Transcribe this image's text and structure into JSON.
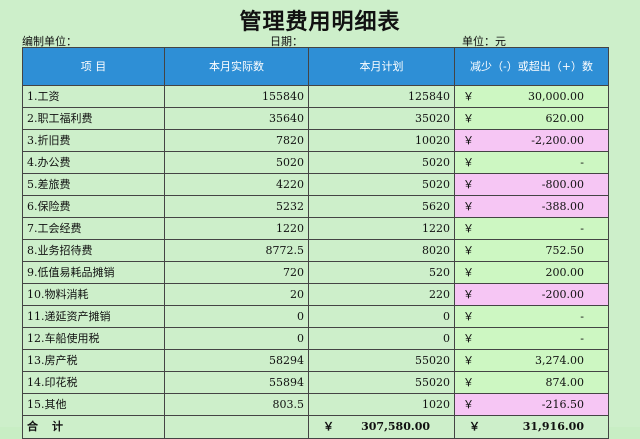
{
  "title": "管理费用明细表",
  "meta": {
    "unit_label": "编制单位：",
    "date_label": "日期：",
    "currency_label": "单位：元"
  },
  "headers": [
    "项    目",
    "本月实际数",
    "本月计划",
    "减少（-）或超出（+）数"
  ],
  "currency_symbol": "￥",
  "rows": [
    {
      "item": "1.工资",
      "actual": "155840",
      "plan": "125840",
      "diff": "30,000.00",
      "sign": "pos"
    },
    {
      "item": "2.职工福利费",
      "actual": "35640",
      "plan": "35020",
      "diff": "620.00",
      "sign": "pos"
    },
    {
      "item": "3.折旧费",
      "actual": "7820",
      "plan": "10020",
      "diff": "-2,200.00",
      "sign": "neg"
    },
    {
      "item": "4.办公费",
      "actual": "5020",
      "plan": "5020",
      "diff": "-",
      "sign": "zero"
    },
    {
      "item": "5.差旅费",
      "actual": "4220",
      "plan": "5020",
      "diff": "-800.00",
      "sign": "neg"
    },
    {
      "item": "6.保险费",
      "actual": "5232",
      "plan": "5620",
      "diff": "-388.00",
      "sign": "neg"
    },
    {
      "item": "7.工会经费",
      "actual": "1220",
      "plan": "1220",
      "diff": "-",
      "sign": "zero"
    },
    {
      "item": "8.业务招待费",
      "actual": "8772.5",
      "plan": "8020",
      "diff": "752.50",
      "sign": "pos"
    },
    {
      "item": "9.低值易耗品摊销",
      "actual": "720",
      "plan": "520",
      "diff": "200.00",
      "sign": "pos"
    },
    {
      "item": "10.物料消耗",
      "actual": "20",
      "plan": "220",
      "diff": "-200.00",
      "sign": "neg"
    },
    {
      "item": "11.递延资产摊销",
      "actual": "0",
      "plan": "0",
      "diff": "-",
      "sign": "zero"
    },
    {
      "item": "12.车船使用税",
      "actual": "0",
      "plan": "0",
      "diff": "-",
      "sign": "zero"
    },
    {
      "item": "13.房产税",
      "actual": "58294",
      "plan": "55020",
      "diff": "3,274.00",
      "sign": "pos"
    },
    {
      "item": "14.印花税",
      "actual": "55894",
      "plan": "55020",
      "diff": "874.00",
      "sign": "pos"
    },
    {
      "item": "15.其他",
      "actual": "803.5",
      "plan": "1020",
      "diff": "-216.50",
      "sign": "neg"
    }
  ],
  "total": {
    "label": "合计",
    "actual": "",
    "plan": "307,580.00",
    "diff": "31,916.00"
  },
  "colors": {
    "header_bg": "#2e8fd6",
    "sheet_bg": "#cdefca",
    "negative_bg": "#f6c6f4",
    "positive_bg": "#cdf7c2"
  }
}
